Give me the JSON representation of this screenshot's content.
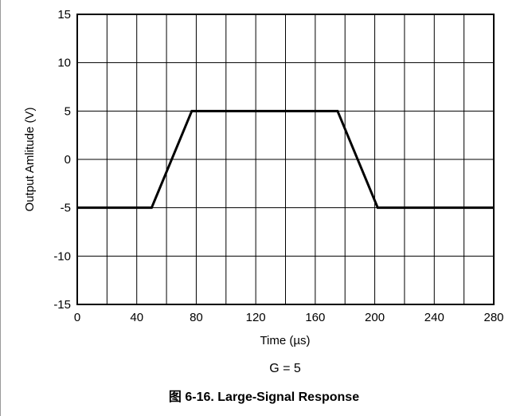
{
  "colors": {
    "line": "#000000",
    "grid": "#000000",
    "background": "#ffffff"
  },
  "chart_data": {
    "type": "line",
    "title": "",
    "subtitle": "G = 5",
    "xlabel": "Time (µs)",
    "ylabel": "Output Amlitude (V)",
    "xlim": [
      0,
      280
    ],
    "ylim": [
      -15,
      15
    ],
    "x_ticks": [
      0,
      40,
      80,
      120,
      160,
      200,
      240,
      280
    ],
    "y_ticks": [
      15,
      10,
      5,
      0,
      -5,
      -10,
      -15
    ],
    "x_grid_step": 20,
    "y_grid_step": 5,
    "grid": true,
    "legend": "none",
    "series": [
      {
        "x": [
          0,
          50,
          77,
          175,
          202,
          280
        ],
        "y": [
          -5,
          -5,
          5,
          5,
          -5,
          -5
        ]
      }
    ]
  },
  "caption": "图 6-16. Large-Signal Response"
}
